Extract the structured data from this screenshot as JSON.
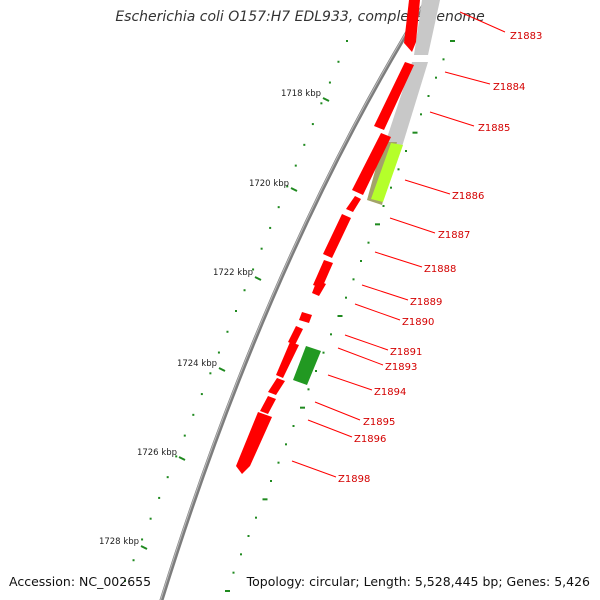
{
  "title": "Escherichia coli O157:H7 EDL933, complete genome",
  "accession": "Accession: NC_002655",
  "summary": "Topology: circular; Length: 5,528,445 bp; Genes: 5,426",
  "scale_labels": [
    "1718 kbp",
    "1720 kbp",
    "1722 kbp",
    "1724 kbp",
    "1726 kbp",
    "1728 kbp"
  ],
  "genes": [
    "Z1883",
    "Z1884",
    "Z1885",
    "Z1886",
    "Z1887",
    "Z1888",
    "Z1889",
    "Z1890",
    "Z1891",
    "Z1893",
    "Z1894",
    "Z1895",
    "Z1896",
    "Z1898"
  ],
  "colors": {
    "backbone": "#7a7a7a",
    "cds": "#ff0000",
    "grey_feature": "#c8c8c8",
    "lime_feature": "#b5ff2a",
    "green_feature": "#229922",
    "ticks": "#1f8a1f",
    "label_line": "#ff0000"
  }
}
